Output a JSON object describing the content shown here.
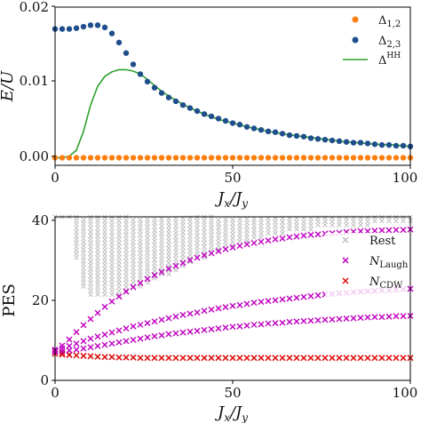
{
  "chart_data": [
    {
      "type": "scatter",
      "xlabel": "J_x/J_y",
      "ylabel": "E/U",
      "xlim": [
        0,
        100
      ],
      "ylim": [
        -0.001,
        0.02
      ],
      "x_ticks": [
        "0",
        "50",
        "100"
      ],
      "y_ticks": [
        "0.00",
        "0.01",
        "0.02"
      ],
      "legend_position": "top-right",
      "series": [
        {
          "name": "Δ1,2",
          "kind": "points",
          "color": "#ff7f0e",
          "x": [
            0,
            2,
            4,
            6,
            8,
            10,
            12,
            14,
            16,
            18,
            20,
            22,
            24,
            26,
            28,
            30,
            32,
            34,
            36,
            38,
            40,
            42,
            44,
            46,
            48,
            50,
            52,
            54,
            56,
            58,
            60,
            62,
            64,
            66,
            68,
            70,
            72,
            74,
            76,
            78,
            80,
            82,
            84,
            86,
            88,
            90,
            92,
            94,
            96,
            98,
            100
          ],
          "values": [
            0,
            0,
            0,
            0,
            0,
            0,
            0,
            0,
            0,
            0,
            0,
            0,
            0,
            0,
            0,
            0,
            0,
            0,
            0,
            0,
            0,
            0,
            0,
            0,
            0,
            0,
            0,
            0,
            0,
            0,
            0,
            0,
            0,
            0,
            0,
            0,
            0,
            0,
            0,
            0,
            0,
            0,
            0,
            0,
            0,
            0,
            0,
            0,
            0,
            0,
            0
          ]
        },
        {
          "name": "Δ2,3",
          "kind": "points",
          "color": "#1f4e8c",
          "x": [
            0,
            2,
            4,
            6,
            8,
            10,
            12,
            14,
            16,
            18,
            20,
            22,
            24,
            26,
            28,
            30,
            32,
            34,
            36,
            38,
            40,
            42,
            44,
            46,
            48,
            50,
            52,
            54,
            56,
            58,
            60,
            62,
            64,
            66,
            68,
            70,
            72,
            74,
            76,
            78,
            80,
            82,
            84,
            86,
            88,
            90,
            92,
            94,
            96,
            98,
            100
          ],
          "values": [
            0.0171,
            0.0171,
            0.0171,
            0.0172,
            0.0174,
            0.0176,
            0.0176,
            0.0173,
            0.0165,
            0.0153,
            0.0139,
            0.0124,
            0.0111,
            0.0101,
            0.0093,
            0.0086,
            0.008,
            0.0075,
            0.007,
            0.0066,
            0.0062,
            0.0058,
            0.0055,
            0.0052,
            0.0049,
            0.0046,
            0.0044,
            0.0041,
            0.0039,
            0.0037,
            0.0035,
            0.0034,
            0.0032,
            0.003,
            0.0029,
            0.0028,
            0.0026,
            0.0025,
            0.0024,
            0.0023,
            0.0022,
            0.0021,
            0.002,
            0.002,
            0.0019,
            0.0018,
            0.0017,
            0.0017,
            0.0016,
            0.0016,
            0.0015
          ]
        },
        {
          "name": "ΔHH",
          "kind": "line",
          "color": "#2ca02c",
          "x": [
            0,
            2,
            4,
            6,
            8,
            10,
            12,
            14,
            16,
            18,
            20,
            22,
            24,
            26,
            28,
            30,
            34,
            38,
            42,
            46,
            50,
            55,
            60,
            65,
            70,
            75,
            80,
            85,
            90,
            95,
            100
          ],
          "values": [
            0,
            0,
            0.0002,
            0.001,
            0.0035,
            0.007,
            0.0095,
            0.0108,
            0.0114,
            0.0117,
            0.0117,
            0.0115,
            0.0111,
            0.0104,
            0.0096,
            0.0088,
            0.0076,
            0.0066,
            0.0058,
            0.0051,
            0.0046,
            0.004,
            0.0035,
            0.0031,
            0.0028,
            0.0025,
            0.0022,
            0.002,
            0.0018,
            0.0017,
            0.0015
          ]
        }
      ]
    },
    {
      "type": "scatter",
      "xlabel": "J_x/J_y",
      "ylabel": "PES",
      "xlim": [
        0,
        100
      ],
      "ylim": [
        0,
        40
      ],
      "x_ticks": [
        "0",
        "50",
        "100"
      ],
      "y_ticks": [
        "0",
        "20",
        "40"
      ],
      "legend_position": "top-right",
      "series": [
        {
          "name": "Rest",
          "kind": "band",
          "color": "#c8c8c8",
          "x": [
            0,
            2,
            4,
            6,
            8,
            10,
            12,
            14,
            16,
            18,
            20,
            22,
            24,
            26,
            28,
            30,
            32,
            34,
            36,
            38,
            40,
            42,
            44,
            46,
            48,
            50,
            52,
            54,
            56,
            58,
            60,
            62,
            64,
            66,
            68,
            70,
            72,
            74,
            76,
            78,
            80,
            82,
            84,
            86,
            88,
            90,
            92,
            94,
            96,
            98,
            100
          ],
          "low": [
            40,
            40,
            40,
            30,
            23,
            21,
            21,
            21,
            21,
            21,
            22,
            23,
            23,
            24,
            25,
            26,
            26,
            27,
            28,
            29,
            30,
            30,
            31,
            32,
            33,
            33,
            34,
            34,
            35,
            35,
            36,
            36,
            36,
            37,
            37,
            37,
            37,
            38,
            38,
            38,
            38,
            38,
            38,
            38,
            38,
            39,
            39,
            39,
            39,
            39,
            39
          ],
          "high": [
            40,
            40,
            40,
            40,
            40,
            40,
            40,
            40,
            40,
            40,
            40,
            40,
            40,
            40,
            40,
            40,
            40,
            40,
            40,
            40,
            40,
            40,
            40,
            40,
            40,
            40,
            40,
            40,
            40,
            40,
            40,
            40,
            40,
            40,
            40,
            40,
            40,
            40,
            40,
            40,
            40,
            40,
            40,
            40,
            40,
            40,
            40,
            40,
            40,
            40,
            40
          ]
        },
        {
          "name": "NLaugh",
          "kind": "crosses",
          "color": "#c000c0",
          "x": [
            0,
            2,
            4,
            6,
            8,
            10,
            12,
            14,
            16,
            18,
            20,
            22,
            24,
            26,
            28,
            30,
            32,
            34,
            36,
            38,
            40,
            42,
            44,
            46,
            48,
            50,
            52,
            54,
            56,
            58,
            60,
            62,
            64,
            66,
            68,
            70,
            72,
            74,
            76,
            78,
            80,
            82,
            84,
            86,
            88,
            90,
            92,
            94,
            96,
            98,
            100
          ],
          "curve1": [
            7.5,
            8.5,
            10.0,
            11.8,
            13.5,
            15.0,
            16.5,
            18.0,
            19.3,
            20.5,
            21.7,
            22.8,
            23.8,
            24.8,
            25.7,
            26.5,
            27.3,
            28.0,
            28.7,
            29.4,
            30.0,
            30.6,
            31.1,
            31.6,
            32.1,
            32.5,
            32.9,
            33.3,
            33.6,
            33.9,
            34.2,
            34.5,
            34.7,
            35.0,
            35.2,
            35.4,
            35.6,
            35.7,
            35.9,
            36.0,
            36.1,
            36.3,
            36.4,
            36.5,
            36.5,
            36.6,
            36.7,
            36.7,
            36.8,
            36.8,
            36.9
          ],
          "curve2": [
            7.2,
            7.8,
            8.4,
            9.0,
            9.6,
            10.2,
            10.7,
            11.2,
            11.7,
            12.2,
            12.7,
            13.2,
            13.6,
            14.0,
            14.4,
            14.8,
            15.2,
            15.6,
            16.0,
            16.3,
            16.6,
            17.0,
            17.3,
            17.6,
            17.9,
            18.2,
            18.4,
            18.7,
            19.0,
            19.2,
            19.4,
            19.6,
            19.8,
            20.0,
            20.2,
            20.4,
            20.6,
            20.8,
            21.0,
            21.1,
            21.3,
            21.4,
            21.6,
            21.7,
            21.8,
            21.9,
            22.0,
            22.1,
            22.2,
            22.3,
            22.4
          ],
          "curve3": [
            7.0,
            7.1,
            7.3,
            7.5,
            7.8,
            8.1,
            8.4,
            8.7,
            9.0,
            9.3,
            9.6,
            9.9,
            10.2,
            10.5,
            10.8,
            11.0,
            11.3,
            11.5,
            11.7,
            11.9,
            12.1,
            12.3,
            12.5,
            12.7,
            12.9,
            13.1,
            13.2,
            13.4,
            13.6,
            13.7,
            13.9,
            14.0,
            14.1,
            14.3,
            14.4,
            14.5,
            14.6,
            14.7,
            14.8,
            14.9,
            15.0,
            15.1,
            15.2,
            15.3,
            15.4,
            15.5,
            15.5,
            15.6,
            15.7,
            15.7,
            15.8
          ]
        },
        {
          "name": "NCDW",
          "kind": "crosses",
          "color": "#dd1111",
          "x": [
            0,
            2,
            4,
            6,
            8,
            10,
            12,
            14,
            16,
            18,
            20,
            22,
            24,
            26,
            28,
            30,
            32,
            34,
            36,
            38,
            40,
            42,
            44,
            46,
            48,
            50,
            52,
            54,
            56,
            58,
            60,
            62,
            64,
            66,
            68,
            70,
            72,
            74,
            76,
            78,
            80,
            82,
            84,
            86,
            88,
            90,
            92,
            94,
            96,
            98,
            100
          ],
          "curve1": [
            6.5,
            6.3,
            6.2,
            6.1,
            6.0,
            5.9,
            5.8,
            5.7,
            5.7,
            5.6,
            5.6,
            5.6,
            5.5,
            5.5,
            5.5,
            5.5,
            5.5,
            5.5,
            5.5,
            5.5,
            5.5,
            5.5,
            5.5,
            5.5,
            5.5,
            5.5,
            5.5,
            5.5,
            5.5,
            5.5,
            5.5,
            5.5,
            5.5,
            5.5,
            5.5,
            5.5,
            5.5,
            5.5,
            5.5,
            5.5,
            5.5,
            5.5,
            5.5,
            5.5,
            5.5,
            5.5,
            5.5,
            5.5,
            5.5,
            5.5,
            5.5
          ],
          "curve2": [
            7.0,
            6.6,
            6.3,
            6.1,
            6.0,
            5.9,
            5.8,
            5.7,
            5.7,
            5.6,
            5.6,
            5.6,
            5.5,
            5.5,
            5.5,
            5.5,
            5.5,
            5.5,
            5.5,
            5.5,
            5.5,
            5.5,
            5.5,
            5.5,
            5.5,
            5.5,
            5.5,
            5.5,
            5.5,
            5.5,
            5.5,
            5.5,
            5.5,
            5.5,
            5.5,
            5.5,
            5.5,
            5.5,
            5.5,
            5.5,
            5.5,
            5.5,
            5.5,
            5.5,
            5.5,
            5.5,
            5.5,
            5.5,
            5.5,
            5.5,
            5.5
          ]
        }
      ]
    }
  ]
}
